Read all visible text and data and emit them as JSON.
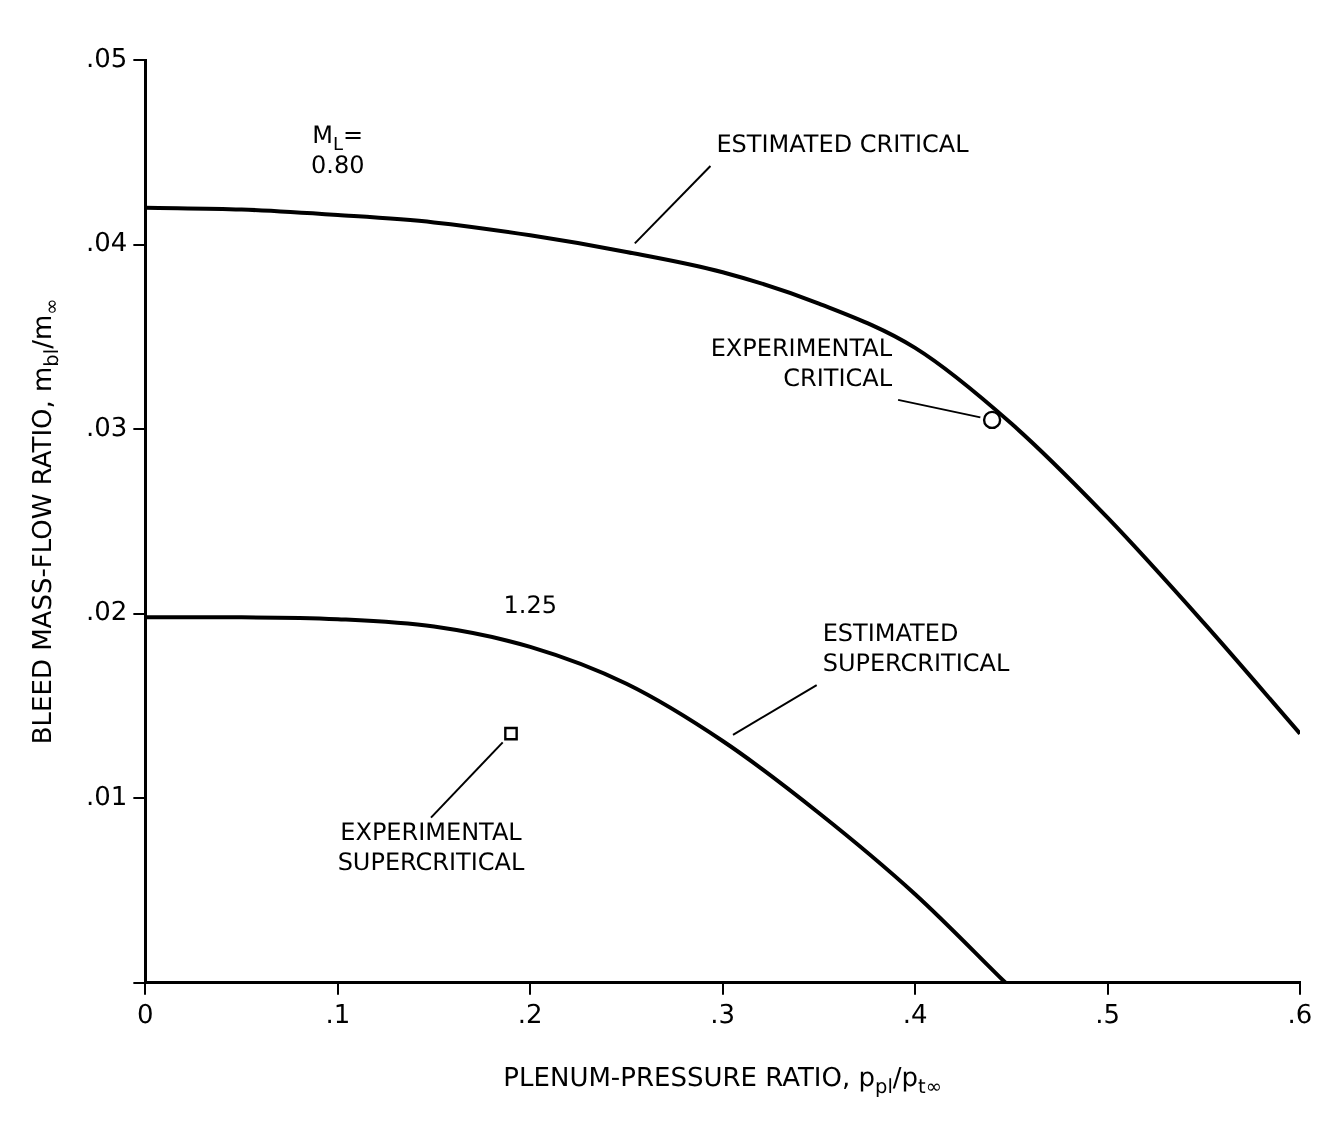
{
  "chart_data": {
    "type": "line",
    "xlabel": "PLENUM-PRESSURE RATIO, p$_{pl}$/p$_{t∞}$",
    "ylabel": "BLEED MASS-FLOW RATIO, m$_{bl}$/m$_{∞}$",
    "xlim": [
      0,
      0.6
    ],
    "xticks": [
      0,
      {
        "value": 0.1,
        "label": ".1"
      },
      {
        "value": 0.2,
        "label": ".2"
      },
      {
        "value": 0.3,
        "label": ".3"
      },
      {
        "value": 0.4,
        "label": ".4"
      },
      {
        "value": 0.5,
        "label": ".5"
      },
      {
        "value": 0.6,
        "label": ".6"
      }
    ],
    "ylim": [
      0,
      0.05
    ],
    "yticks": [
      {
        "value": 0,
        "label": null
      },
      {
        "value": 0.01,
        "label": ".01"
      },
      {
        "value": 0.02,
        "label": ".02"
      },
      {
        "value": 0.03,
        "label": ".03"
      },
      {
        "value": 0.04,
        "label": ".04"
      },
      {
        "value": 0.05,
        "label": ".05"
      }
    ],
    "grid": false,
    "legend": false,
    "line_style": "solid",
    "series": [
      {
        "color": "#000000",
        "marker": "none",
        "x": [
          0,
          0.05,
          0.1,
          0.15,
          0.2,
          0.25,
          0.3,
          0.35,
          0.4,
          0.45,
          0.5,
          0.55,
          0.6
        ],
        "values": [
          0.042,
          0.0419,
          0.0416,
          0.0412,
          0.0405,
          0.0396,
          0.0385,
          0.0368,
          0.0344,
          0.0303,
          0.0252,
          0.0195,
          0.0135
        ]
      },
      {
        "color": "#000000",
        "marker": "none",
        "x": [
          0,
          0.05,
          0.1,
          0.15,
          0.2,
          0.25,
          0.3,
          0.35,
          0.4,
          0.447
        ],
        "values": [
          0.0198,
          0.0198,
          0.0197,
          0.0193,
          0.0182,
          0.0162,
          0.0131,
          0.0092,
          0.0048,
          0
        ]
      },
      {
        "type": "scatter",
        "color": "#000000",
        "marker": "circle",
        "x": [
          0.44
        ],
        "values": [
          0.0305
        ]
      },
      {
        "type": "scatter",
        "color": "#000000",
        "marker": "square",
        "x": [
          0.19
        ],
        "values": [
          0.0135
        ]
      }
    ],
    "annotations": [
      {
        "text": "M$_{L}$=\n0.80",
        "x": 0.1,
        "y": 0.0416
      },
      {
        "text": "1.25",
        "x": 0.2,
        "y": 0.0182
      },
      {
        "text": "ESTIMATED CRITICAL",
        "x": 0.25,
        "y": 0.0396
      },
      {
        "text": "EXPERIMENTAL\nCRITICAL",
        "x": 0.44,
        "y": 0.0305
      },
      {
        "text": "ESTIMATED\nSUPERCRITICAL",
        "x": 0.3,
        "y": 0.0131
      },
      {
        "text": "EXPERIMENTAL\nSUPERCRITICAL",
        "x": 0.19,
        "y": 0.0135
      }
    ]
  }
}
